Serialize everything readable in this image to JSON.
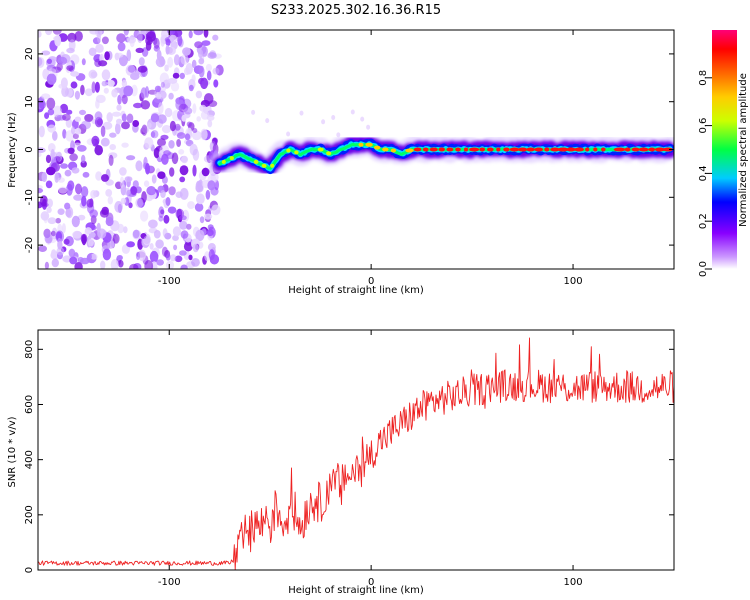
{
  "title": "S233.2025.302.16.36.R15",
  "chart_data": [
    {
      "type": "heatmap",
      "name": "spectrogram",
      "xlabel": "Height of straight line (km)",
      "ylabel": "Frequency (Hz)",
      "xlim": [
        -165,
        150
      ],
      "ylim": [
        -25,
        25
      ],
      "xticks": [
        -100,
        0,
        100
      ],
      "yticks": [
        -20,
        -10,
        0,
        10,
        20
      ],
      "noise_region_x": [
        -165,
        -75
      ],
      "signal_track": {
        "x": [
          -75,
          -70,
          -65,
          -60,
          -55,
          -50,
          -45,
          -40,
          -35,
          -30,
          -25,
          -20,
          -15,
          -10,
          -5,
          0,
          5,
          10,
          15,
          20,
          30,
          40,
          50,
          60,
          70,
          80,
          90,
          100,
          110,
          120,
          130,
          140,
          148
        ],
        "y": [
          -3,
          -2,
          -1,
          -2,
          -3,
          -4,
          -1,
          0,
          -1,
          0,
          0,
          -1,
          0,
          1,
          1,
          1,
          0,
          0,
          -1,
          0,
          0,
          0,
          0,
          0,
          0,
          0,
          0,
          0,
          0,
          0,
          0,
          0,
          0
        ]
      },
      "colorbar": {
        "label": "Normalized spectral amplitude",
        "range": [
          0,
          1
        ],
        "ticks": [
          0.0,
          0.2,
          0.4,
          0.6,
          0.8
        ],
        "tick_labels": [
          "0.0",
          "0.2",
          "0.4",
          "0.6",
          "0.8"
        ],
        "colors": [
          "#ffffff",
          "#cc99ff",
          "#8800ff",
          "#0000ff",
          "#00ffff",
          "#00ff00",
          "#ffff00",
          "#ff8800",
          "#ff0000",
          "#ff0066"
        ]
      }
    },
    {
      "type": "line",
      "name": "snr",
      "xlabel": "Height of straight line (km)",
      "ylabel": "SNR (10 * v/v)",
      "xlim": [
        -165,
        150
      ],
      "ylim": [
        0,
        870
      ],
      "xticks": [
        -100,
        0,
        100
      ],
      "yticks": [
        0,
        200,
        400,
        600,
        800
      ],
      "color": "#ee2222",
      "series": [
        {
          "name": "SNR",
          "x": [
            -165,
            -150,
            -135,
            -120,
            -105,
            -90,
            -75,
            -70,
            -67,
            -65,
            -62,
            -60,
            -57,
            -55,
            -52,
            -50,
            -47,
            -45,
            -42,
            -40,
            -37,
            -35,
            -32,
            -30,
            -27,
            -25,
            -22,
            -20,
            -17,
            -15,
            -12,
            -10,
            -7,
            -5,
            -2,
            0,
            5,
            10,
            15,
            20,
            25,
            30,
            40,
            50,
            60,
            70,
            80,
            90,
            100,
            110,
            120,
            130,
            140,
            150
          ],
          "y": [
            25,
            25,
            25,
            25,
            25,
            25,
            25,
            25,
            40,
            80,
            140,
            120,
            180,
            150,
            200,
            160,
            230,
            190,
            170,
            240,
            200,
            150,
            220,
            240,
            260,
            230,
            300,
            270,
            330,
            290,
            360,
            330,
            380,
            360,
            400,
            420,
            470,
            500,
            530,
            560,
            590,
            610,
            630,
            650,
            665,
            670,
            670,
            665,
            660,
            665,
            665,
            660,
            660,
            665
          ],
          "noise_amplitude": 55
        }
      ]
    }
  ]
}
